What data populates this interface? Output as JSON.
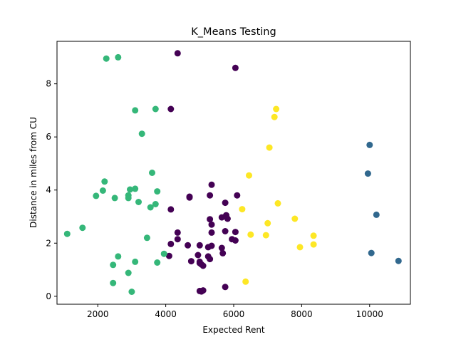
{
  "chart_data": {
    "type": "scatter",
    "title": "K_Means Testing",
    "xlabel": "Expected Rent",
    "ylabel": "Distance in miles from CU",
    "xlim": [
      800,
      11200
    ],
    "ylim": [
      -0.3,
      9.6
    ],
    "xticks": [
      2000,
      4000,
      6000,
      8000,
      10000
    ],
    "yticks": [
      0,
      2,
      4,
      6,
      8
    ],
    "grid": false,
    "legend": "none",
    "series": [
      {
        "color": "#440154",
        "points": [
          [
            4350,
            9.15
          ],
          [
            6050,
            8.6
          ],
          [
            4150,
            7.05
          ],
          [
            5350,
            4.2
          ],
          [
            4700,
            3.75
          ],
          [
            4700,
            3.72
          ],
          [
            5300,
            3.8
          ],
          [
            6100,
            3.8
          ],
          [
            5750,
            3.52
          ],
          [
            4150,
            3.27
          ],
          [
            5650,
            2.97
          ],
          [
            5780,
            3.05
          ],
          [
            5820,
            2.92
          ],
          [
            5300,
            2.9
          ],
          [
            5350,
            2.7
          ],
          [
            4350,
            2.4
          ],
          [
            5350,
            2.4
          ],
          [
            5750,
            2.45
          ],
          [
            6050,
            2.42
          ],
          [
            4350,
            2.15
          ],
          [
            5950,
            2.15
          ],
          [
            6050,
            2.1
          ],
          [
            4150,
            1.97
          ],
          [
            4650,
            1.92
          ],
          [
            5000,
            1.92
          ],
          [
            5250,
            1.85
          ],
          [
            5350,
            1.9
          ],
          [
            5650,
            1.82
          ],
          [
            5680,
            1.62
          ],
          [
            4100,
            1.52
          ],
          [
            4950,
            1.55
          ],
          [
            5250,
            1.5
          ],
          [
            5300,
            1.4
          ],
          [
            4750,
            1.32
          ],
          [
            5000,
            1.3
          ],
          [
            5000,
            1.25
          ],
          [
            5050,
            1.2
          ],
          [
            5100,
            1.15
          ],
          [
            5750,
            0.35
          ],
          [
            5000,
            0.2
          ],
          [
            5050,
            0.18
          ],
          [
            5100,
            0.22
          ]
        ]
      },
      {
        "color": "#31688e",
        "points": [
          [
            10000,
            5.7
          ],
          [
            9950,
            4.62
          ],
          [
            10200,
            3.07
          ],
          [
            10050,
            1.63
          ],
          [
            10850,
            1.33
          ]
        ]
      },
      {
        "color": "#35b779",
        "points": [
          [
            2250,
            8.95
          ],
          [
            2600,
            9.0
          ],
          [
            3100,
            7.0
          ],
          [
            3700,
            7.05
          ],
          [
            3300,
            6.12
          ],
          [
            2200,
            4.32
          ],
          [
            3600,
            4.65
          ],
          [
            2150,
            3.98
          ],
          [
            2950,
            4.02
          ],
          [
            3100,
            4.05
          ],
          [
            3750,
            3.95
          ],
          [
            1950,
            3.78
          ],
          [
            2500,
            3.7
          ],
          [
            2900,
            3.8
          ],
          [
            2900,
            3.7
          ],
          [
            3200,
            3.55
          ],
          [
            3700,
            3.47
          ],
          [
            3550,
            3.35
          ],
          [
            1100,
            2.35
          ],
          [
            1550,
            2.58
          ],
          [
            3450,
            2.2
          ],
          [
            3950,
            1.6
          ],
          [
            2600,
            1.5
          ],
          [
            3100,
            1.3
          ],
          [
            3750,
            1.27
          ],
          [
            2450,
            1.18
          ],
          [
            2900,
            0.88
          ],
          [
            2450,
            0.5
          ],
          [
            3000,
            0.17
          ]
        ]
      },
      {
        "color": "#fde725",
        "points": [
          [
            7250,
            7.05
          ],
          [
            7200,
            6.75
          ],
          [
            7050,
            5.6
          ],
          [
            6450,
            4.55
          ],
          [
            7300,
            3.5
          ],
          [
            6250,
            3.28
          ],
          [
            7800,
            2.92
          ],
          [
            7000,
            2.75
          ],
          [
            6500,
            2.32
          ],
          [
            6950,
            2.3
          ],
          [
            8350,
            2.28
          ],
          [
            7950,
            1.85
          ],
          [
            8350,
            1.95
          ],
          [
            6350,
            0.55
          ]
        ]
      }
    ]
  }
}
